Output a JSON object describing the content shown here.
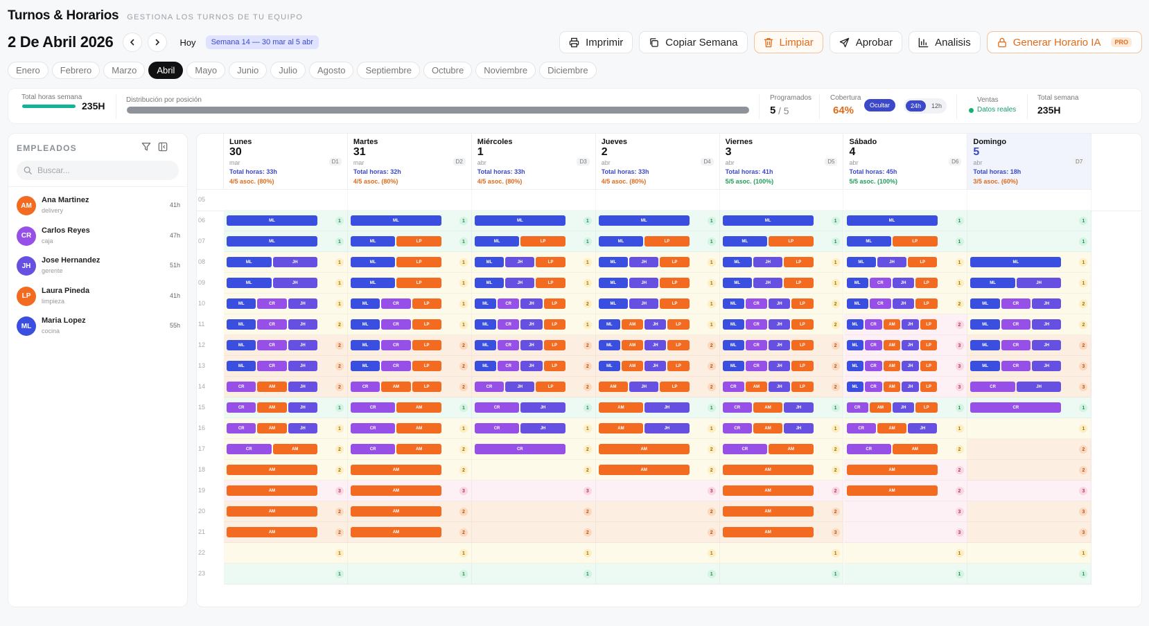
{
  "header": {
    "title": "Turnos & Horarios",
    "subtitle": "GESTIONA LOS TURNOS DE TU EQUIPO"
  },
  "nav": {
    "date": "2 De Abril 2026",
    "today_label": "Hoy",
    "week_badge": "Semana 14 — 30 mar al 5 abr"
  },
  "toolbar": {
    "print": "Imprimir",
    "copy_week": "Copiar Semana",
    "clear": "Limpiar",
    "approve": "Aprobar",
    "analysis": "Analisis",
    "generate": "Generar Horario IA",
    "pro_badge": "PRO"
  },
  "months": {
    "items": [
      "Enero",
      "Febrero",
      "Marzo",
      "Abril",
      "Mayo",
      "Junio",
      "Julio",
      "Agosto",
      "Septiembre",
      "Octubre",
      "Noviembre",
      "Diciembre"
    ],
    "active": 3
  },
  "stats": {
    "total_hours_label": "Total horas semana",
    "total_hours_value": "235H",
    "total_hours_progress": 1.0,
    "distribution_label": "Distribución por posición",
    "scheduled_label": "Programados",
    "scheduled_value": "5",
    "scheduled_total": "/ 5",
    "coverage_label": "Cobertura",
    "coverage_value": "64%",
    "hide_label": "Ocultar",
    "mode_24": "24h",
    "mode_12": "12h",
    "sales_label": "Ventas",
    "sales_value": "Datos reales",
    "week_total_label": "Total semana",
    "week_total_value": "235H"
  },
  "sidebar": {
    "title": "EMPLEADOS",
    "search_placeholder": "Buscar...",
    "employees": [
      {
        "initials": "AM",
        "name": "Ana Martinez",
        "role": "delivery",
        "hours": "41h",
        "color": "#f26b21"
      },
      {
        "initials": "CR",
        "name": "Carlos Reyes",
        "role": "caja",
        "hours": "47h",
        "color": "#9650e8"
      },
      {
        "initials": "JH",
        "name": "Jose Hernandez",
        "role": "gerente",
        "hours": "51h",
        "color": "#6650e2"
      },
      {
        "initials": "LP",
        "name": "Laura Pineda",
        "role": "limpieza",
        "hours": "41h",
        "color": "#f26b21"
      },
      {
        "initials": "ML",
        "name": "Maria Lopez",
        "role": "cocina",
        "hours": "55h",
        "color": "#3a4fe0"
      }
    ]
  },
  "colors": {
    "ML": "#3a4fe0",
    "JH": "#6650e2",
    "CR": "#9650e8",
    "AM": "#f26b21",
    "LP": "#f26b21",
    "accent": "#3b48c9",
    "warn": "#e06b1a",
    "ok": "#1f9e57"
  },
  "hours": [
    "05",
    "06",
    "07",
    "08",
    "09",
    "10",
    "11",
    "12",
    "13",
    "14",
    "15",
    "16",
    "17",
    "18",
    "19",
    "20",
    "21",
    "22",
    "23"
  ],
  "days": [
    {
      "name": "Lunes",
      "date": "30",
      "month": "mar",
      "code": "D1",
      "total": "Total horas: 33h",
      "assoc": "4/5 asoc. (80%)",
      "assoc_full": false
    },
    {
      "name": "Martes",
      "date": "31",
      "month": "mar",
      "code": "D2",
      "total": "Total horas: 32h",
      "assoc": "4/5 asoc. (80%)",
      "assoc_full": false
    },
    {
      "name": "Miércoles",
      "date": "1",
      "month": "abr",
      "code": "D3",
      "total": "Total horas: 33h",
      "assoc": "4/5 asoc. (80%)",
      "assoc_full": false
    },
    {
      "name": "Jueves",
      "date": "2",
      "month": "abr",
      "code": "D4",
      "total": "Total horas: 33h",
      "assoc": "4/5 asoc. (80%)",
      "assoc_full": false
    },
    {
      "name": "Viernes",
      "date": "3",
      "month": "abr",
      "code": "D5",
      "total": "Total horas: 41h",
      "assoc": "5/5 asoc. (100%)",
      "assoc_full": true
    },
    {
      "name": "Sábado",
      "date": "4",
      "month": "abr",
      "code": "D6",
      "total": "Total horas: 45h",
      "assoc": "5/5 asoc. (100%)",
      "assoc_full": true
    },
    {
      "name": "Domingo",
      "date": "5",
      "month": "abr",
      "code": "D7",
      "total": "Total horas: 18h",
      "assoc": "3/5 asoc. (60%)",
      "assoc_full": false,
      "highlight": true
    }
  ],
  "schedule": [
    [
      [],
      [
        "ML"
      ],
      [
        "ML"
      ],
      [
        "ML",
        "JH"
      ],
      [
        "ML",
        "JH"
      ],
      [
        "ML",
        "CR",
        "JH"
      ],
      [
        "ML",
        "CR",
        "JH"
      ],
      [
        "ML",
        "CR",
        "JH"
      ],
      [
        "ML",
        "CR",
        "JH"
      ],
      [
        "CR",
        "AM",
        "JH"
      ],
      [
        "CR",
        "AM",
        "JH"
      ],
      [
        "CR",
        "AM",
        "JH"
      ],
      [
        "CR",
        "AM"
      ],
      [
        "AM"
      ],
      [
        "AM"
      ],
      [
        "AM"
      ],
      [
        "AM"
      ],
      [],
      []
    ],
    [
      [],
      [
        "ML"
      ],
      [
        "ML",
        "LP"
      ],
      [
        "ML",
        "LP"
      ],
      [
        "ML",
        "LP"
      ],
      [
        "ML",
        "CR",
        "LP"
      ],
      [
        "ML",
        "CR",
        "LP"
      ],
      [
        "ML",
        "CR",
        "LP"
      ],
      [
        "ML",
        "CR",
        "LP"
      ],
      [
        "CR",
        "AM",
        "LP"
      ],
      [
        "CR",
        "AM"
      ],
      [
        "CR",
        "AM"
      ],
      [
        "CR",
        "AM"
      ],
      [
        "AM"
      ],
      [
        "AM"
      ],
      [
        "AM"
      ],
      [
        "AM"
      ],
      [],
      []
    ],
    [
      [],
      [
        "ML"
      ],
      [
        "ML",
        "LP"
      ],
      [
        "ML",
        "JH",
        "LP"
      ],
      [
        "ML",
        "JH",
        "LP"
      ],
      [
        "ML",
        "CR",
        "JH",
        "LP"
      ],
      [
        "ML",
        "CR",
        "JH",
        "LP"
      ],
      [
        "ML",
        "CR",
        "JH",
        "LP"
      ],
      [
        "ML",
        "CR",
        "JH",
        "LP"
      ],
      [
        "CR",
        "JH",
        "LP"
      ],
      [
        "CR",
        "JH"
      ],
      [
        "CR",
        "JH"
      ],
      [
        "CR"
      ],
      [],
      [],
      [],
      [],
      [],
      []
    ],
    [
      [],
      [
        "ML"
      ],
      [
        "ML",
        "LP"
      ],
      [
        "ML",
        "JH",
        "LP"
      ],
      [
        "ML",
        "JH",
        "LP"
      ],
      [
        "ML",
        "JH",
        "LP"
      ],
      [
        "ML",
        "AM",
        "JH",
        "LP"
      ],
      [
        "ML",
        "AM",
        "JH",
        "LP"
      ],
      [
        "ML",
        "AM",
        "JH",
        "LP"
      ],
      [
        "AM",
        "JH",
        "LP"
      ],
      [
        "AM",
        "JH"
      ],
      [
        "AM",
        "JH"
      ],
      [
        "AM"
      ],
      [
        "AM"
      ],
      [],
      [],
      [],
      [],
      []
    ],
    [
      [],
      [
        "ML"
      ],
      [
        "ML",
        "LP"
      ],
      [
        "ML",
        "JH",
        "LP"
      ],
      [
        "ML",
        "JH",
        "LP"
      ],
      [
        "ML",
        "CR",
        "JH",
        "LP"
      ],
      [
        "ML",
        "CR",
        "JH",
        "LP"
      ],
      [
        "ML",
        "CR",
        "JH",
        "LP"
      ],
      [
        "ML",
        "CR",
        "JH",
        "LP"
      ],
      [
        "CR",
        "AM",
        "JH",
        "LP"
      ],
      [
        "CR",
        "AM",
        "JH"
      ],
      [
        "CR",
        "AM",
        "JH"
      ],
      [
        "CR",
        "AM"
      ],
      [
        "AM"
      ],
      [
        "AM"
      ],
      [
        "AM"
      ],
      [
        "AM"
      ],
      [],
      []
    ],
    [
      [],
      [
        "ML"
      ],
      [
        "ML",
        "LP"
      ],
      [
        "ML",
        "JH",
        "LP"
      ],
      [
        "ML",
        "CR",
        "JH",
        "LP"
      ],
      [
        "ML",
        "CR",
        "JH",
        "LP"
      ],
      [
        "ML",
        "CR",
        "AM",
        "JH",
        "LP"
      ],
      [
        "ML",
        "CR",
        "AM",
        "JH",
        "LP"
      ],
      [
        "ML",
        "CR",
        "AM",
        "JH",
        "LP"
      ],
      [
        "ML",
        "CR",
        "AM",
        "JH",
        "LP"
      ],
      [
        "CR",
        "AM",
        "JH",
        "LP"
      ],
      [
        "CR",
        "AM",
        "JH"
      ],
      [
        "CR",
        "AM"
      ],
      [
        "AM"
      ],
      [
        "AM"
      ],
      [],
      [],
      [],
      []
    ],
    [
      [],
      [],
      [],
      [
        "ML"
      ],
      [
        "ML",
        "JH"
      ],
      [
        "ML",
        "CR",
        "JH"
      ],
      [
        "ML",
        "CR",
        "JH"
      ],
      [
        "ML",
        "CR",
        "JH"
      ],
      [
        "ML",
        "CR",
        "JH"
      ],
      [
        "CR",
        "JH"
      ],
      [
        "CR"
      ],
      [],
      [],
      [],
      [],
      [],
      [],
      [],
      []
    ]
  ],
  "counts": [
    [
      null,
      "1",
      "1",
      "1",
      "1",
      "1",
      "2",
      "2",
      "2",
      "2",
      "1",
      "1",
      "2",
      "2",
      "3",
      "2",
      "2",
      "1",
      "1"
    ],
    [
      null,
      "1",
      "1",
      "1",
      "1",
      "1",
      "1",
      "2",
      "2",
      "2",
      "1",
      "1",
      "2",
      "2",
      "3",
      "2",
      "2",
      "1",
      "1"
    ],
    [
      null,
      "1",
      "1",
      "1",
      "1",
      "2",
      "1",
      "2",
      "2",
      "2",
      "1",
      "1",
      "2",
      "2",
      "3",
      "2",
      "2",
      "1",
      "1"
    ],
    [
      null,
      "1",
      "1",
      "1",
      "1",
      "1",
      "1",
      "2",
      "2",
      "2",
      "1",
      "1",
      "2",
      "2",
      "3",
      "2",
      "2",
      "1",
      "1"
    ],
    [
      null,
      "1",
      "1",
      "1",
      "1",
      "2",
      "2",
      "2",
      "2",
      "2",
      "1",
      "1",
      "2",
      "2",
      "2",
      "2",
      "3",
      "1",
      "1"
    ],
    [
      null,
      "1",
      "1",
      "1",
      "1",
      "2",
      "2",
      "3",
      "3",
      "3",
      "1",
      "1",
      "2",
      "2",
      "2",
      "3",
      "3",
      "1",
      "1"
    ],
    [
      null,
      "1",
      "1",
      "1",
      "1",
      "2",
      "2",
      "2",
      "3",
      "3",
      "1",
      "1",
      "2",
      "2",
      "3",
      "3",
      "3",
      "1",
      "1"
    ]
  ],
  "heat": [
    [
      null,
      "g",
      "g",
      "y",
      "y",
      "y",
      "y",
      "o",
      "o",
      "o",
      "g",
      "y",
      "y",
      "y",
      "p",
      "o",
      "o",
      "y",
      "g"
    ],
    [
      null,
      "g",
      "g",
      "y",
      "y",
      "y",
      "y",
      "o",
      "o",
      "o",
      "g",
      "y",
      "y",
      "y",
      "p",
      "o",
      "o",
      "y",
      "g"
    ],
    [
      null,
      "g",
      "g",
      "y",
      "y",
      "y",
      "y",
      "o",
      "o",
      "o",
      "g",
      "y",
      "y",
      "y",
      "p",
      "o",
      "o",
      "y",
      "g"
    ],
    [
      null,
      "g",
      "g",
      "y",
      "y",
      "y",
      "y",
      "o",
      "o",
      "o",
      "g",
      "y",
      "y",
      "y",
      "p",
      "o",
      "o",
      "y",
      "g"
    ],
    [
      null,
      "g",
      "g",
      "y",
      "y",
      "y",
      "y",
      "o",
      "o",
      "o",
      "g",
      "y",
      "y",
      "y",
      "p",
      "o",
      "o",
      "y",
      "g"
    ],
    [
      null,
      "g",
      "g",
      "y",
      "y",
      "y",
      "p",
      "p",
      "p",
      "p",
      "g",
      "y",
      "y",
      "p",
      "p",
      "p",
      "p",
      "y",
      "g"
    ],
    [
      null,
      "g",
      "g",
      "y",
      "y",
      "y",
      "y",
      "o",
      "o",
      "o",
      "g",
      "y",
      "o",
      "o",
      "p",
      "o",
      "o",
      "y",
      "g"
    ]
  ]
}
